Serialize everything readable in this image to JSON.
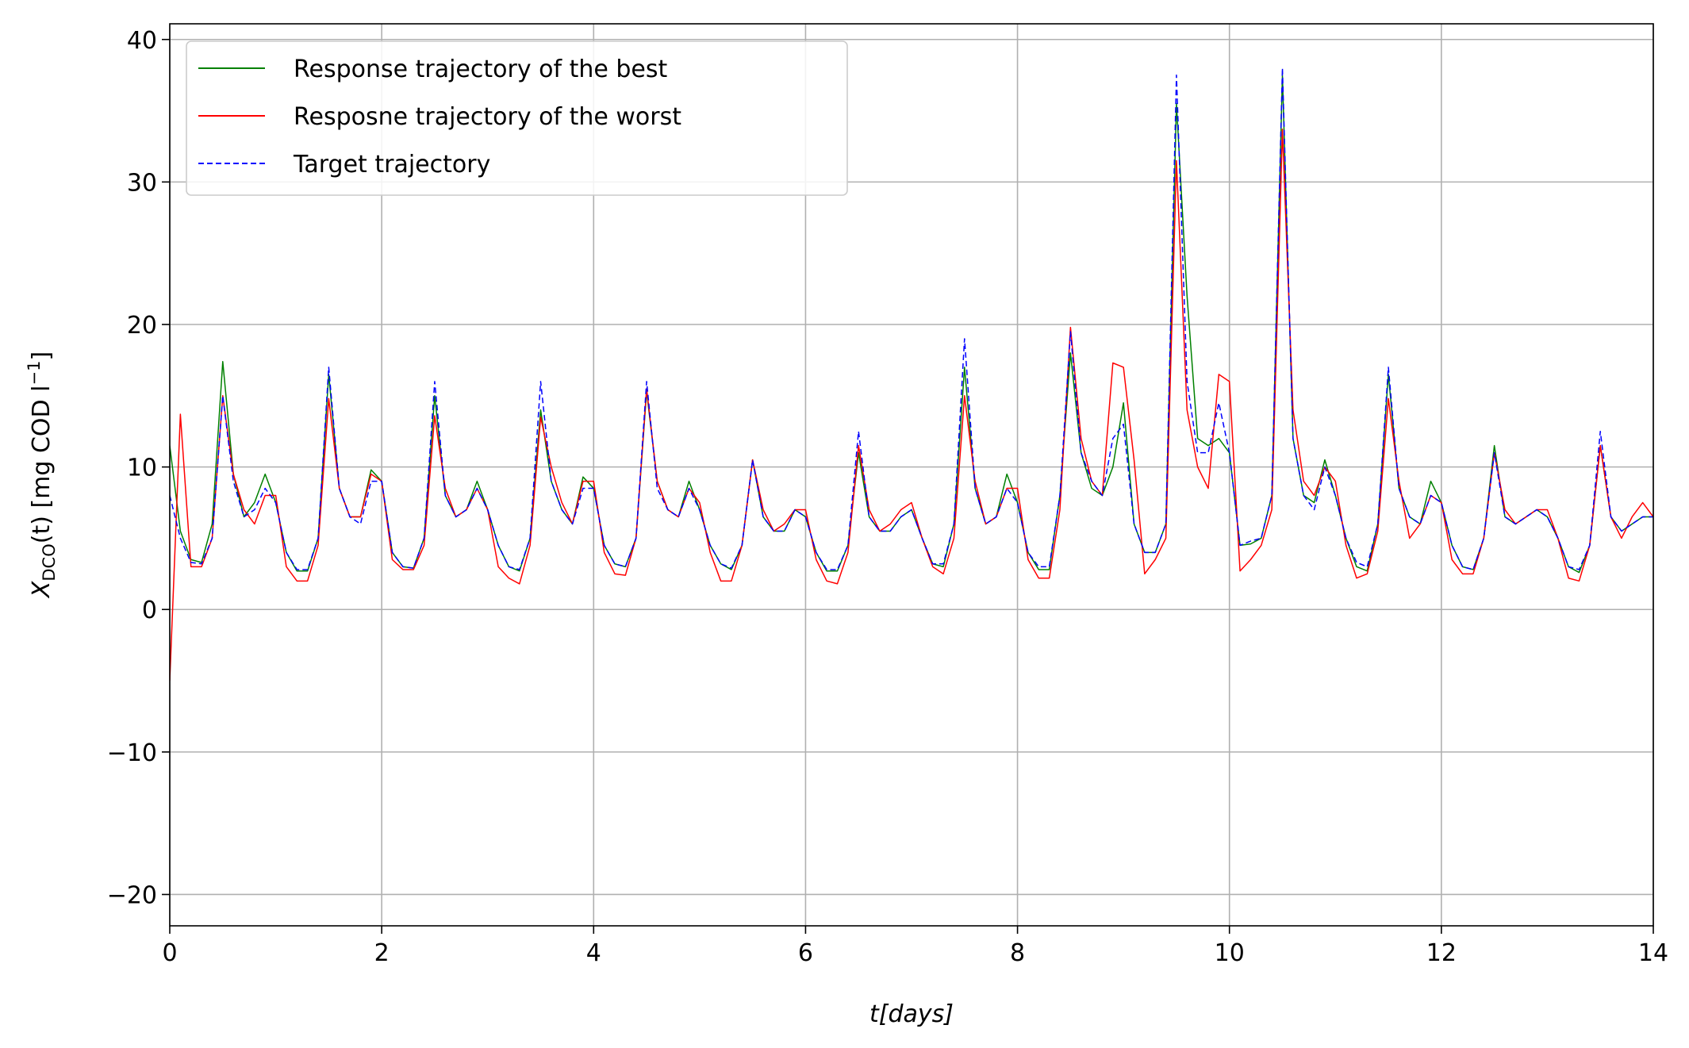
{
  "chart_data": {
    "type": "line",
    "xlabel": "t[days]",
    "ylabel": {
      "symbol": "X",
      "subscript": "DCO",
      "rest": "(t) [mg COD l",
      "superscript": "−1",
      "end": "]"
    },
    "xlim": [
      0,
      14
    ],
    "ylim": [
      -22.2,
      41.1
    ],
    "xticks": [
      0,
      2,
      4,
      6,
      8,
      10,
      12,
      14
    ],
    "yticks": [
      {
        "value": -20,
        "label": "−20"
      },
      {
        "value": -10,
        "label": "−10"
      },
      0,
      10,
      20,
      30,
      40
    ],
    "grid": true,
    "legend": "upper left",
    "x": [
      0,
      0.1,
      0.2,
      0.3,
      0.4,
      0.5,
      0.6,
      0.7,
      0.8,
      0.9,
      1,
      1.1,
      1.2,
      1.3,
      1.4,
      1.5,
      1.6,
      1.7,
      1.8,
      1.9,
      2,
      2.1,
      2.2,
      2.3,
      2.4,
      2.5,
      2.6,
      2.7,
      2.8,
      2.9,
      3,
      3.1,
      3.2,
      3.3,
      3.4,
      3.5,
      3.6,
      3.7,
      3.8,
      3.9,
      4,
      4.1,
      4.2,
      4.3,
      4.4,
      4.5,
      4.6,
      4.7,
      4.8,
      4.9,
      5,
      5.1,
      5.2,
      5.3,
      5.4,
      5.5,
      5.6,
      5.7,
      5.8,
      5.9,
      6,
      6.1,
      6.2,
      6.3,
      6.4,
      6.5,
      6.6,
      6.7,
      6.8,
      6.9,
      7,
      7.1,
      7.2,
      7.3,
      7.4,
      7.5,
      7.6,
      7.7,
      7.8,
      7.9,
      8,
      8.1,
      8.2,
      8.3,
      8.4,
      8.5,
      8.6,
      8.7,
      8.8,
      8.9,
      9,
      9.1,
      9.2,
      9.3,
      9.4,
      9.5,
      9.6,
      9.7,
      9.8,
      9.9,
      10,
      10.1,
      10.2,
      10.3,
      10.4,
      10.5,
      10.6,
      10.7,
      10.8,
      10.9,
      11,
      11.1,
      11.2,
      11.3,
      11.4,
      11.5,
      11.6,
      11.7,
      11.8,
      11.9,
      12,
      12.1,
      12.2,
      12.3,
      12.4,
      12.5,
      12.6,
      12.7,
      12.8,
      12.9,
      13,
      13.1,
      13.2,
      13.3,
      13.4,
      13.5,
      13.6,
      13.7,
      13.8,
      13.9,
      14
    ],
    "series": [
      {
        "name": "Response trajectory of the best",
        "color": "#008000",
        "linestyle": "solid",
        "values": [
          11.5,
          5.5,
          3.5,
          3.3,
          6,
          17.4,
          9.5,
          6.5,
          7.5,
          9.5,
          7.5,
          4,
          2.7,
          2.7,
          5,
          16.5,
          8.5,
          6.5,
          6.5,
          9.8,
          9,
          4,
          3,
          2.9,
          5,
          15,
          8,
          6.5,
          7,
          9,
          7,
          4.5,
          3,
          2.7,
          5,
          14,
          9,
          7,
          6,
          9.3,
          8.5,
          4.5,
          3.2,
          3,
          5,
          15.3,
          9,
          7,
          6.5,
          9,
          7,
          4.5,
          3.2,
          2.8,
          4.5,
          10.5,
          6.5,
          5.5,
          5.5,
          7,
          6.5,
          4,
          2.7,
          2.7,
          4.5,
          11,
          6.5,
          5.5,
          5.5,
          6.5,
          7,
          5,
          3.2,
          3,
          6,
          17,
          8.5,
          6,
          6.5,
          9.5,
          7.5,
          4,
          2.8,
          2.8,
          8,
          18,
          11,
          8.5,
          8,
          10,
          14.5,
          6,
          4,
          4,
          6,
          35.5,
          22,
          12,
          11.5,
          12,
          11,
          4.5,
          4.6,
          5,
          8,
          37.5,
          12,
          8,
          7.5,
          10.5,
          8,
          5,
          3,
          2.7,
          6,
          16.5,
          8.5,
          6.5,
          6,
          9,
          7.5,
          4.5,
          3,
          2.8,
          5,
          11.5,
          6.5,
          6,
          6.5,
          7,
          6.5,
          5,
          3,
          2.6,
          4.5,
          11.5,
          6.5,
          5.5,
          6,
          6.5,
          6.5
        ]
      },
      {
        "name": "Resposne trajectory of the worst",
        "color": "#ff0000",
        "linestyle": "solid",
        "values": [
          -5,
          13.7,
          3,
          3,
          5,
          15,
          9.5,
          7,
          6,
          8,
          8,
          3,
          2,
          2,
          4.5,
          14.8,
          8.5,
          6.5,
          6.5,
          9.5,
          9,
          3.5,
          2.8,
          2.8,
          4.5,
          13.6,
          8.5,
          6.5,
          7,
          8.5,
          7,
          3,
          2.2,
          1.8,
          4.5,
          13.5,
          10,
          7.5,
          6,
          9,
          9,
          4,
          2.5,
          2.4,
          5,
          15.5,
          9,
          7,
          6.5,
          8.5,
          7.5,
          4,
          2,
          2,
          4.5,
          10.5,
          7,
          5.5,
          6,
          7,
          7,
          3.5,
          2,
          1.8,
          4,
          11.5,
          7,
          5.5,
          6,
          7,
          7.5,
          5,
          3,
          2.5,
          5,
          15,
          9,
          6,
          6.5,
          8.5,
          8.5,
          3.5,
          2.2,
          2.2,
          7,
          19.8,
          12,
          9,
          8,
          17.3,
          17,
          10.5,
          2.5,
          3.5,
          5,
          31.5,
          14,
          10,
          8.5,
          16.5,
          16,
          2.7,
          3.5,
          4.5,
          7,
          33.7,
          14,
          9,
          8,
          10,
          9,
          4.5,
          2.2,
          2.5,
          5.5,
          14.8,
          9,
          5,
          6,
          8,
          7.5,
          3.5,
          2.5,
          2.5,
          5,
          11,
          7,
          6,
          6.5,
          7,
          7,
          5,
          2.2,
          2,
          4.5,
          11.5,
          6.5,
          5,
          6.5,
          7.5,
          6.5
        ]
      },
      {
        "name": "Target trajectory",
        "color": "#0000ff",
        "linestyle": "dashed",
        "values": [
          8,
          5,
          3.3,
          3.2,
          5,
          15,
          9,
          6.5,
          7,
          8.5,
          7.5,
          4,
          2.8,
          2.8,
          5,
          17,
          8.5,
          6.5,
          6,
          9,
          9,
          4,
          3,
          2.9,
          5,
          16,
          8,
          6.5,
          7,
          8.5,
          7,
          4.5,
          3,
          2.8,
          5,
          16,
          9,
          7,
          6,
          8.5,
          8.5,
          4.5,
          3.2,
          3,
          5,
          16,
          8.5,
          7,
          6.5,
          8.5,
          7,
          4.5,
          3.2,
          2.9,
          4.5,
          10.5,
          6.5,
          5.5,
          5.5,
          7,
          6.5,
          4,
          2.8,
          2.8,
          4.5,
          12.5,
          6.5,
          5.5,
          5.5,
          6.5,
          7,
          5,
          3.2,
          3.2,
          6,
          19,
          8.5,
          6,
          6.5,
          8.5,
          7.5,
          4,
          3,
          3,
          8,
          19.5,
          11,
          9,
          8,
          12,
          13,
          6,
          4,
          4,
          6,
          37.5,
          16,
          11,
          11,
          14.5,
          11,
          4.5,
          4.8,
          5,
          8,
          38,
          12,
          8,
          7,
          10,
          8,
          5,
          3.3,
          3,
          6,
          17,
          8.5,
          6.5,
          6,
          8,
          7.5,
          4.5,
          3,
          2.8,
          5,
          11,
          6.5,
          6,
          6.5,
          7,
          6.5,
          5,
          3,
          2.8,
          4.5,
          12.5,
          6.5,
          5.5,
          6,
          6.5,
          6.5
        ]
      }
    ]
  }
}
